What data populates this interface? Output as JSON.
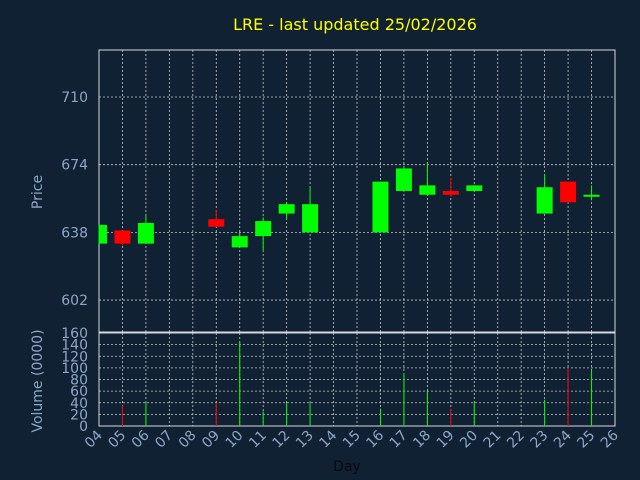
{
  "chart_data": {
    "type": "candlestick",
    "title": "LRE - last updated 25/02/2026",
    "ylabel": "Price",
    "y2label": "Volume (0000)",
    "xlabel": "Day",
    "ylim": [
      585,
      735
    ],
    "vlim": [
      0,
      160
    ],
    "y_ticks": [
      "602",
      "638",
      "674",
      "710"
    ],
    "v_ticks": [
      "0",
      "20",
      "40",
      "60",
      "80",
      "100",
      "120",
      "140",
      "160"
    ],
    "x_ticks": [
      "04",
      "05",
      "06",
      "07",
      "08",
      "09",
      "10",
      "11",
      "12",
      "13",
      "14",
      "15",
      "16",
      "17",
      "18",
      "19",
      "20",
      "21",
      "22",
      "23",
      "24",
      "25",
      "26"
    ],
    "up_color": "#00ff00",
    "down_color": "#ff0000",
    "candles": [
      {
        "day": 4,
        "open": 632,
        "close": 642,
        "high": 642,
        "low": 632,
        "volume": 0
      },
      {
        "day": 5,
        "open": 639,
        "close": 632,
        "high": 639,
        "low": 631,
        "volume": 35
      },
      {
        "day": 6,
        "open": 632,
        "close": 643,
        "high": 647,
        "low": 632,
        "volume": 40
      },
      {
        "day": 9,
        "open": 645,
        "close": 641,
        "high": 650,
        "low": 641,
        "volume": 40
      },
      {
        "day": 10,
        "open": 630,
        "close": 636,
        "high": 638,
        "low": 630,
        "volume": 145
      },
      {
        "day": 11,
        "open": 636,
        "close": 644,
        "high": 646,
        "low": 628,
        "volume": 25
      },
      {
        "day": 12,
        "open": 648,
        "close": 653,
        "high": 654,
        "low": 645,
        "volume": 40
      },
      {
        "day": 13,
        "open": 638,
        "close": 653,
        "high": 662,
        "low": 638,
        "volume": 40
      },
      {
        "day": 16,
        "open": 638,
        "close": 665,
        "high": 665,
        "low": 638,
        "volume": 30
      },
      {
        "day": 17,
        "open": 660,
        "close": 672,
        "high": 673,
        "low": 660,
        "volume": 90
      },
      {
        "day": 18,
        "open": 658,
        "close": 663,
        "high": 675,
        "low": 658,
        "volume": 60
      },
      {
        "day": 19,
        "open": 660,
        "close": 658,
        "high": 667,
        "low": 657,
        "volume": 30
      },
      {
        "day": 20,
        "open": 660,
        "close": 663,
        "high": 663,
        "low": 660,
        "volume": 40
      },
      {
        "day": 23,
        "open": 648,
        "close": 662,
        "high": 669,
        "low": 648,
        "volume": 45
      },
      {
        "day": 24,
        "open": 665,
        "close": 654,
        "high": 665,
        "low": 654,
        "volume": 100
      },
      {
        "day": 25,
        "open": 657,
        "close": 658,
        "high": 663,
        "low": 655,
        "volume": 95
      }
    ]
  }
}
